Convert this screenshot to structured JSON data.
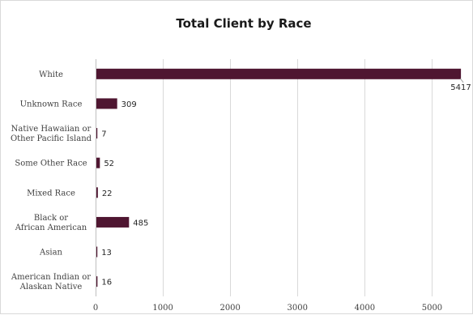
{
  "chart_data": {
    "type": "bar",
    "orientation": "horizontal",
    "title": "Total Client by Race",
    "xlabel": "",
    "ylabel": "",
    "categories": [
      [
        "White"
      ],
      [
        "Unknown Race"
      ],
      [
        "Native Hawaiian or",
        "Other Pacific Island"
      ],
      [
        "Some Other Race"
      ],
      [
        "Mixed Race"
      ],
      [
        "Black or",
        "African American"
      ],
      [
        "Asian"
      ],
      [
        "American Indian or",
        "Alaskan Native"
      ]
    ],
    "values": [
      5417,
      309,
      7,
      52,
      22,
      485,
      13,
      16
    ],
    "xlim": [
      0,
      5500
    ],
    "xticks": [
      0,
      1000,
      2000,
      3000,
      4000,
      5000
    ],
    "grid": true,
    "legend": "none",
    "bar_color": "#4f1631"
  }
}
